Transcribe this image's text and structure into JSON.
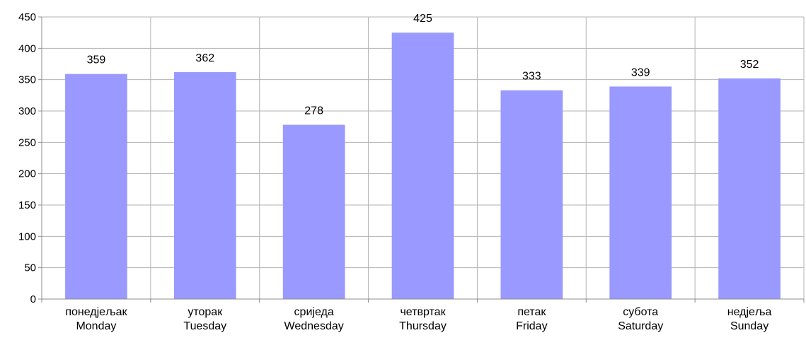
{
  "chart_data": {
    "type": "bar",
    "categories": [
      [
        "понедјељак",
        "Monday"
      ],
      [
        "уторак",
        "Tuesday"
      ],
      [
        "сриједа",
        "Wednesday"
      ],
      [
        "четвртак",
        "Thursday"
      ],
      [
        "петак",
        "Friday"
      ],
      [
        "субота",
        "Saturday"
      ],
      [
        "недјеља",
        "Sunday"
      ]
    ],
    "series": [
      {
        "values": [
          359,
          362,
          278,
          425,
          333,
          339,
          352
        ],
        "color": "#9999ff"
      }
    ],
    "data_labels": [
      "359",
      "362",
      "278",
      "425",
      "333",
      "339",
      "352"
    ],
    "y_ticks": [
      0,
      50,
      100,
      150,
      200,
      250,
      300,
      350,
      400,
      450
    ],
    "ylim": [
      0,
      450
    ],
    "grid": true,
    "grid_color": "#b3b3b3",
    "axis_color": "#8c8c8c",
    "legend": "none"
  }
}
